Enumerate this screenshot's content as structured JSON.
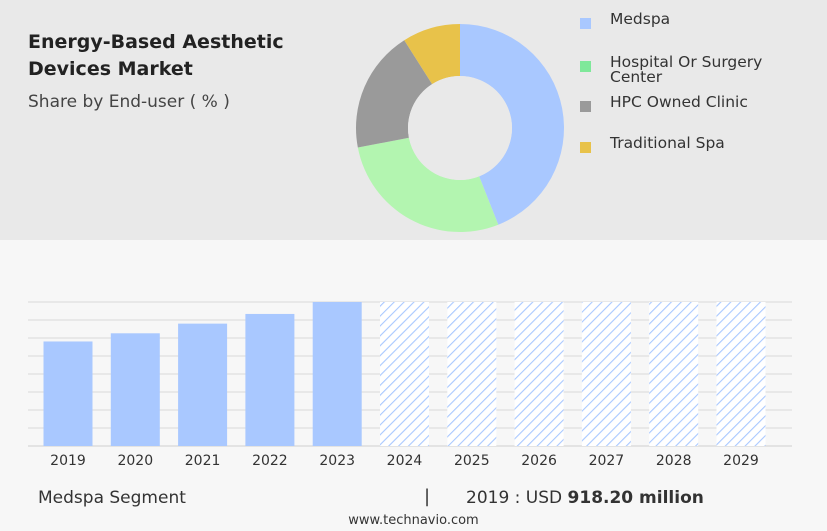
{
  "header": {
    "title": "Energy-Based Aesthetic Devices Market",
    "subtitle": "Share by End-user ( % )"
  },
  "donut_chart": {
    "type": "pie",
    "segments": [
      {
        "name": "Medspa",
        "share": 44,
        "color": "#a9c8ff"
      },
      {
        "name": "Hospital Or Surgery Center",
        "share": 28,
        "color": "#b3f5b0"
      },
      {
        "name": "HPC Owned Clinic",
        "share": 19,
        "color": "#9a9a9a"
      },
      {
        "name": "Traditional Spa",
        "share": 9,
        "color": "#e8c24a"
      }
    ]
  },
  "legend": {
    "items": [
      {
        "label": "Medspa",
        "color": "#a9c8ff"
      },
      {
        "label": "Hospital Or Surgery Center",
        "color": "#7fe89a"
      },
      {
        "label": "HPC Owned Clinic",
        "color": "#9a9a9a"
      },
      {
        "label": "Traditional Spa",
        "color": "#e8c24a"
      }
    ]
  },
  "chart_data": {
    "type": "bar",
    "categories": [
      "2019",
      "2020",
      "2021",
      "2022",
      "2023",
      "2024",
      "2025",
      "2026",
      "2027",
      "2028",
      "2029"
    ],
    "values": [
      918.2,
      990,
      1075,
      1160,
      1265,
      1265,
      1265,
      1265,
      1265,
      1265,
      1265
    ],
    "forecast_from_index": 5,
    "ylim": [
      0,
      1265
    ],
    "grid": true,
    "bar_color": "#a9c8ff",
    "title": "",
    "xlabel": "",
    "ylabel": ""
  },
  "footer": {
    "segment_label": "Medspa Segment",
    "separator": "|",
    "value_prefix": "2019 : USD",
    "value_bold": "918.20 million",
    "source": "www.technavio.com"
  }
}
